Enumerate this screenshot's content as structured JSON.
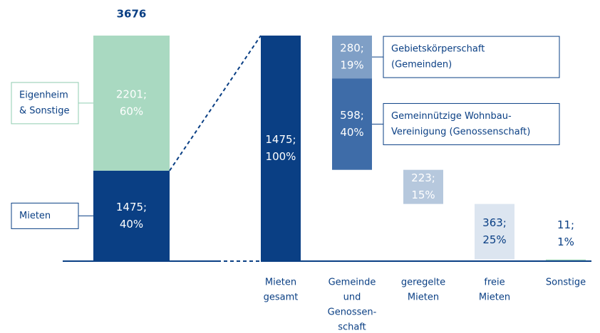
{
  "chart_data": [
    {
      "type": "stacked",
      "total": 3676,
      "segments": [
        {
          "name": [
            "Mieten"
          ],
          "value": 1475,
          "value_label": "1475;",
          "share": 40,
          "share_label": "40%",
          "color": "#0a3f84",
          "label_color": "#ffffff",
          "border": "#0a3f84"
        },
        {
          "name": [
            "Eigenheim",
            "& Sonstige"
          ],
          "value": 2201,
          "value_label": "2201;",
          "share": 60,
          "share_label": "60%",
          "color": "#a9d9c1",
          "label_color": "#ffffff",
          "border": "#8fcdb0"
        }
      ]
    },
    {
      "type": "waterfall",
      "bars": [
        {
          "category": [
            "Mieten",
            "gesamt"
          ],
          "segments": [
            {
              "value": 1475,
              "value_label": "1475;",
              "share": 100,
              "share_label": "100%",
              "color": "#0a3f84",
              "label_color": "#ffffff"
            }
          ]
        },
        {
          "category": [
            "Gemeinde",
            "und",
            "Genossen-",
            "schaft"
          ],
          "segments": [
            {
              "name": [
                "Gebietskörperschaft",
                "(Gemeinden)"
              ],
              "value": 280,
              "value_label": "280;",
              "share": 19,
              "share_label": "19%",
              "color": "#7f9fc6",
              "label_color": "#ffffff"
            },
            {
              "name": [
                "Gemeinnützige Wohnbau-",
                "Vereinigung (Genossenschaft)"
              ],
              "value": 598,
              "value_label": "598;",
              "share": 40,
              "share_label": "40%",
              "color": "#3e6ca8",
              "label_color": "#ffffff"
            }
          ]
        },
        {
          "category": [
            "geregelte",
            "Mieten"
          ],
          "segments": [
            {
              "value": 223,
              "value_label": "223;",
              "share": 15,
              "share_label": "15%",
              "color": "#b6c8dd",
              "label_color": "#ffffff"
            }
          ]
        },
        {
          "category": [
            "freie",
            "Mieten"
          ],
          "segments": [
            {
              "value": 363,
              "value_label": "363;",
              "share": 25,
              "share_label": "25%",
              "color": "#dce5f0",
              "label_color": "#0a3f84"
            }
          ]
        },
        {
          "category": [
            "Sonstige"
          ],
          "segments": [
            {
              "value": 11,
              "value_label": "11;",
              "share": 1,
              "share_label": "1%",
              "color": "#a9d9c1",
              "label_color": "#0a3f84"
            }
          ]
        }
      ]
    }
  ]
}
